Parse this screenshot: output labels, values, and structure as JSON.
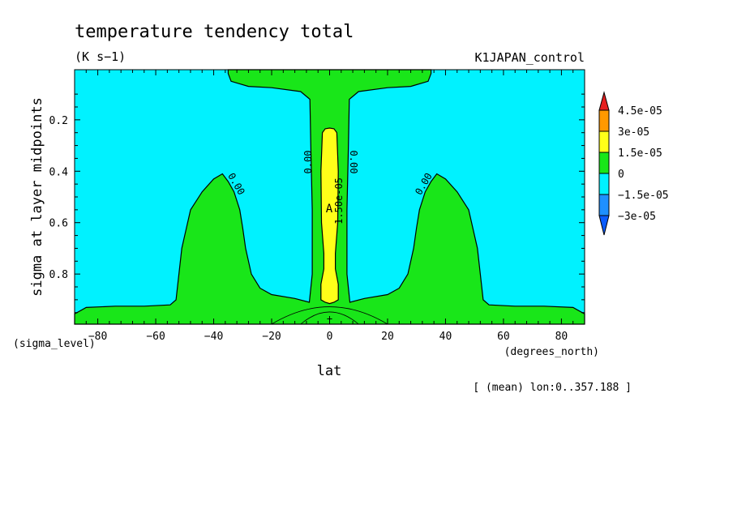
{
  "chart_data": {
    "type": "contour",
    "title": "temperature tendency total",
    "units": "(K s−1)",
    "experiment": "K1JAPAN_control",
    "xlabel": "lat",
    "ylabel": "sigma at layer midpoints",
    "x_coord_name": "(degrees_north)",
    "y_coord_name": "(sigma_level)",
    "annotation": "[ (mean) lon:0..357.188 ]",
    "xlim": [
      -88,
      88
    ],
    "ylim": [
      0.995,
      0.005
    ],
    "x_ticks": [
      -80,
      -60,
      -40,
      -20,
      0,
      20,
      40,
      60,
      80
    ],
    "x_tick_labels": [
      "−80",
      "−60",
      "−40",
      "−20",
      "0",
      "20",
      "40",
      "60",
      "80"
    ],
    "y_ticks": [
      0.2,
      0.4,
      0.6,
      0.8
    ],
    "y_tick_labels": [
      "0.2",
      "0.4",
      "0.6",
      "0.8"
    ],
    "levels": [
      -3e-05,
      -1.5e-05,
      0,
      1.5e-05,
      3e-05,
      4.5e-05
    ],
    "colorbar": {
      "labels": [
        "4.5e-05",
        "3e-05",
        "1.5e-05",
        "0",
        "−1.5e-05",
        "−3e-05"
      ],
      "colors": [
        "#e61f1f",
        "#ff9900",
        "#ffff19",
        "#19e619",
        "#00f2ff",
        "#1e90ff",
        "#0a5cff"
      ]
    },
    "background_color": "#00f2ff",
    "regions": [
      {
        "name": "positive-upper",
        "value_range": "0 to 1.5e-05",
        "color": "#19e619",
        "points": [
          [
            -88,
            0.995
          ],
          [
            -88,
            0.955
          ],
          [
            -84,
            0.93
          ],
          [
            -74,
            0.925
          ],
          [
            -64,
            0.925
          ],
          [
            -55,
            0.92
          ],
          [
            -53,
            0.9
          ],
          [
            -51,
            0.7
          ],
          [
            -48,
            0.55
          ],
          [
            -44,
            0.48
          ],
          [
            -40,
            0.43
          ],
          [
            -37,
            0.41
          ],
          [
            -35,
            0.44
          ],
          [
            -33,
            0.48
          ],
          [
            -31,
            0.55
          ],
          [
            -30,
            0.62
          ],
          [
            -29,
            0.7
          ],
          [
            -27,
            0.8
          ],
          [
            -24,
            0.855
          ],
          [
            -20,
            0.88
          ],
          [
            -12,
            0.895
          ],
          [
            -7,
            0.91
          ],
          [
            -6,
            0.8
          ],
          [
            -6,
            0.55
          ],
          [
            -6.5,
            0.3
          ],
          [
            -6.8,
            0.12
          ],
          [
            -10,
            0.09
          ],
          [
            -20,
            0.075
          ],
          [
            -28,
            0.07
          ],
          [
            -34,
            0.05
          ],
          [
            -35,
            0.02
          ],
          [
            -35,
            0.005
          ],
          [
            35,
            0.005
          ],
          [
            35,
            0.02
          ],
          [
            34,
            0.05
          ],
          [
            28,
            0.07
          ],
          [
            20,
            0.075
          ],
          [
            10,
            0.09
          ],
          [
            6.8,
            0.12
          ],
          [
            6.5,
            0.3
          ],
          [
            6,
            0.55
          ],
          [
            6,
            0.8
          ],
          [
            7,
            0.91
          ],
          [
            12,
            0.895
          ],
          [
            20,
            0.88
          ],
          [
            24,
            0.855
          ],
          [
            27,
            0.8
          ],
          [
            29,
            0.7
          ],
          [
            30,
            0.62
          ],
          [
            31,
            0.55
          ],
          [
            33,
            0.48
          ],
          [
            35,
            0.44
          ],
          [
            37,
            0.41
          ],
          [
            40,
            0.43
          ],
          [
            44,
            0.48
          ],
          [
            48,
            0.55
          ],
          [
            51,
            0.7
          ],
          [
            53,
            0.9
          ],
          [
            55,
            0.92
          ],
          [
            64,
            0.925
          ],
          [
            74,
            0.925
          ],
          [
            84,
            0.93
          ],
          [
            88,
            0.955
          ],
          [
            88,
            0.995
          ]
        ]
      },
      {
        "name": "positive-tropics-core",
        "value_range": "1.5e-05 to 3e-05",
        "color": "#ffff19",
        "points": [
          [
            -2.5,
            0.25
          ],
          [
            -3,
            0.4
          ],
          [
            -2.8,
            0.6
          ],
          [
            -2,
            0.72
          ],
          [
            -2,
            0.78
          ],
          [
            -3,
            0.84
          ],
          [
            -3,
            0.9
          ],
          [
            -1.5,
            0.91
          ],
          [
            0,
            0.915
          ],
          [
            1.5,
            0.91
          ],
          [
            3,
            0.9
          ],
          [
            3,
            0.84
          ],
          [
            2,
            0.78
          ],
          [
            2,
            0.72
          ],
          [
            2.8,
            0.6
          ],
          [
            3,
            0.4
          ],
          [
            2.5,
            0.25
          ],
          [
            1.5,
            0.235
          ],
          [
            0,
            0.232
          ],
          [
            -1.5,
            0.235
          ]
        ]
      }
    ],
    "contour_labels": [
      "0.00",
      "0.00",
      "0.00",
      "0.00",
      "1.50e-05"
    ],
    "extremum_marker": "A"
  }
}
